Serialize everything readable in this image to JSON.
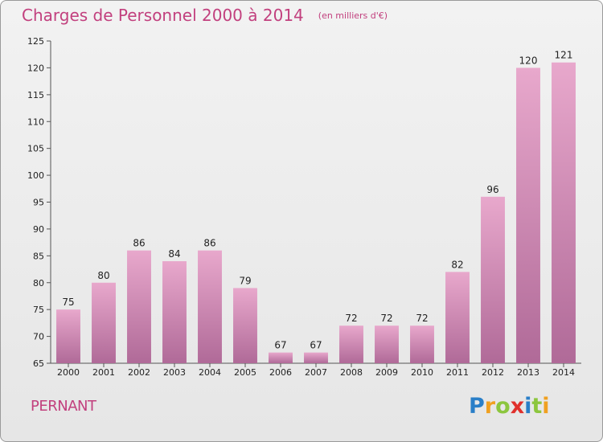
{
  "title": "Charges de Personnel 2000 à 2014",
  "subtitle": "(en milliers d'€)",
  "commune": "PERNANT",
  "logo": {
    "letters": [
      {
        "ch": "P",
        "color": "#2a7fc8"
      },
      {
        "ch": "r",
        "color": "#f0a020"
      },
      {
        "ch": "o",
        "color": "#8cc63e"
      },
      {
        "ch": "x",
        "color": "#e0302c"
      },
      {
        "ch": "i",
        "color": "#2a7fc8"
      },
      {
        "ch": "t",
        "color": "#8cc63e"
      },
      {
        "ch": "i",
        "color": "#f0a020"
      }
    ]
  },
  "colors": {
    "title": "#c2407e",
    "bar_top": "#e8a8cc",
    "bar_bottom": "#b06a98"
  },
  "chart_data": {
    "type": "bar",
    "categories": [
      "2000",
      "2001",
      "2002",
      "2003",
      "2004",
      "2005",
      "2006",
      "2007",
      "2008",
      "2009",
      "2010",
      "2011",
      "2012",
      "2013",
      "2014"
    ],
    "values": [
      75,
      80,
      86,
      84,
      86,
      79,
      67,
      67,
      72,
      72,
      72,
      82,
      96,
      120,
      121
    ],
    "ylim": [
      65,
      125
    ],
    "yticks": [
      65,
      70,
      75,
      80,
      85,
      90,
      95,
      100,
      105,
      110,
      115,
      120,
      125
    ],
    "grid": false
  }
}
